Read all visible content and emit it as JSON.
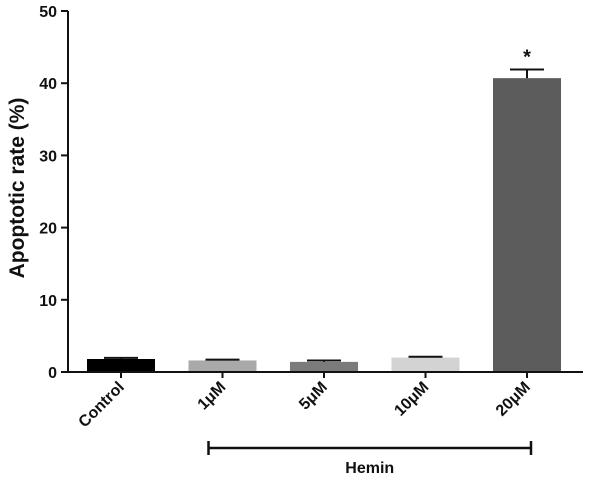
{
  "chart_data": {
    "type": "bar",
    "title": "",
    "xlabel": "",
    "ylabel": "Apoptotic rate (%)",
    "ylim": [
      0,
      50
    ],
    "yticks": [
      0,
      10,
      20,
      30,
      40,
      50
    ],
    "grid": false,
    "categories": [
      "Control",
      "1μM",
      "5μM",
      "10μM",
      "20μM"
    ],
    "values": [
      1.8,
      1.6,
      1.4,
      2.0,
      40.7
    ],
    "errors": [
      0.15,
      0.12,
      0.2,
      0.12,
      1.2
    ],
    "colors": [
      "#000000",
      "#a9a9a9",
      "#7b7b7b",
      "#d3d3d3",
      "#5c5c5c"
    ],
    "annotations": [
      {
        "category": "20μM",
        "text": "*"
      }
    ],
    "group_bracket": {
      "label": "Hemin",
      "from": "1μM",
      "to": "20μM"
    }
  }
}
